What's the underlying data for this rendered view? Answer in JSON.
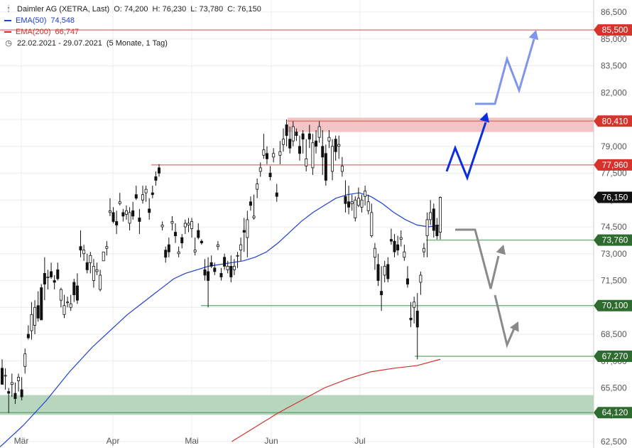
{
  "legend": {
    "header": "Daimler AG (XETRA, Last)",
    "open": "O: 74,200",
    "high": "H: 76,230",
    "low": "L: 73,780",
    "close": "C: 76,150",
    "ema50_label": "EMA(50)",
    "ema50_value": "74,548",
    "ema200_label": "EMA(200)",
    "ema200_value": "66,747",
    "date_range": "22.02.2021 - 29.07.2021",
    "period": "(5 Monate, 1 Tag)",
    "chart_icon": "candlestick-chart-icon",
    "clock_icon": "clock-icon"
  },
  "colors": {
    "ema50": "#1f3fd6",
    "ema200": "#d2302a",
    "resistance": "#e06666",
    "support": "#5aa36b",
    "zone_red": "#f2c4c4",
    "zone_green": "#b8d6bd",
    "arrow_blue": "#0a2ee0",
    "arrow_blue_light": "#7f95ee",
    "arrow_gray": "#8a8a8a",
    "badge_red": "#d8322c",
    "badge_green": "#2e6b2e",
    "badge_black": "#111111"
  },
  "chart_data": {
    "type": "candlestick",
    "instrument": "Daimler AG (XETRA, Last)",
    "period": "22.02.2021 - 29.07.2021",
    "interval": "1 Tag",
    "ylim": [
      62500,
      86500
    ],
    "y_ticks": [
      "62,500",
      "64,000",
      "65,500",
      "67,000",
      "68,500",
      "70,000",
      "71,500",
      "73,000",
      "74,500",
      "76,000",
      "77,500",
      "79,000",
      "80,500",
      "82,000",
      "83,500",
      "85,000",
      "86,500"
    ],
    "x_tick_labels": [
      "Mär",
      "Apr",
      "Mai",
      "Jun",
      "Jul"
    ],
    "last": {
      "open": 74.2,
      "high": 76.23,
      "low": 73.78,
      "close": 76.15
    },
    "price_badges": [
      {
        "label": "85,500",
        "value": 85.5,
        "kind": "resistance"
      },
      {
        "label": "80,410",
        "value": 80.41,
        "kind": "resistance"
      },
      {
        "label": "77,960",
        "value": 77.96,
        "kind": "resistance"
      },
      {
        "label": "76,150",
        "value": 76.15,
        "kind": "last"
      },
      {
        "label": "73,760",
        "value": 73.76,
        "kind": "support"
      },
      {
        "label": "70,100",
        "value": 70.1,
        "kind": "support"
      },
      {
        "label": "67,270",
        "value": 67.27,
        "kind": "support"
      },
      {
        "label": "64,120",
        "value": 64.12,
        "kind": "support"
      }
    ],
    "zones": [
      {
        "from": 79.8,
        "to": 80.6,
        "kind": "resistance"
      },
      {
        "from": 64.0,
        "to": 65.1,
        "kind": "support"
      }
    ],
    "ema50": [
      [
        0,
        62.2
      ],
      [
        5,
        62.8
      ],
      [
        10,
        63.4
      ],
      [
        15,
        64.1
      ],
      [
        20,
        64.8
      ],
      [
        25,
        65.6
      ],
      [
        30,
        66.4
      ],
      [
        35,
        67.1
      ],
      [
        40,
        67.8
      ],
      [
        45,
        68.4
      ],
      [
        50,
        69.0
      ],
      [
        55,
        69.6
      ],
      [
        60,
        70.1
      ],
      [
        65,
        70.6
      ],
      [
        70,
        71.1
      ],
      [
        75,
        71.6
      ],
      [
        80,
        71.9
      ],
      [
        85,
        72.1
      ],
      [
        90,
        72.3
      ],
      [
        95,
        72.4
      ],
      [
        100,
        72.5
      ],
      [
        105,
        72.6
      ],
      [
        110,
        72.8
      ],
      [
        115,
        73.1
      ],
      [
        120,
        73.6
      ],
      [
        125,
        74.2
      ],
      [
        130,
        74.8
      ],
      [
        135,
        75.3
      ],
      [
        140,
        75.7
      ],
      [
        145,
        76.1
      ],
      [
        150,
        76.3
      ],
      [
        155,
        76.4
      ],
      [
        160,
        76.2
      ],
      [
        165,
        75.8
      ],
      [
        170,
        75.3
      ],
      [
        175,
        74.9
      ],
      [
        180,
        74.6
      ],
      [
        185,
        74.5
      ],
      [
        190,
        74.6
      ]
    ],
    "ema200": [
      [
        100,
        62.5
      ],
      [
        110,
        63.3
      ],
      [
        120,
        64.1
      ],
      [
        130,
        64.8
      ],
      [
        140,
        65.5
      ],
      [
        150,
        66.0
      ],
      [
        160,
        66.4
      ],
      [
        170,
        66.6
      ],
      [
        180,
        66.75
      ],
      [
        190,
        67.1
      ]
    ],
    "candles": [
      [
        0,
        66.6,
        67.1,
        65.9,
        65.7
      ],
      [
        1,
        66.2,
        66.6,
        65.4,
        66.2
      ],
      [
        2,
        65.3,
        65.5,
        64.1,
        65.2
      ],
      [
        3,
        65.7,
        66.3,
        65.0,
        65.8
      ],
      [
        4,
        65.2,
        65.8,
        64.6,
        64.9
      ],
      [
        5,
        65.9,
        66.3,
        65.3,
        66.1
      ],
      [
        6,
        65.4,
        66.1,
        64.8,
        65.0
      ],
      [
        7,
        66.7,
        67.7,
        66.3,
        67.4
      ],
      [
        8,
        68.5,
        69.0,
        68.2,
        68.3
      ],
      [
        9,
        68.7,
        70.3,
        68.2,
        69.6
      ],
      [
        10,
        69.0,
        70.4,
        68.5,
        70.0
      ],
      [
        11,
        70.1,
        70.9,
        69.2,
        69.4
      ],
      [
        12,
        71.1,
        71.3,
        69.3,
        69.3
      ],
      [
        13,
        71.9,
        72.8,
        70.4,
        71.3
      ],
      [
        14,
        71.7,
        72.1,
        71.0,
        71.7
      ],
      [
        15,
        72.0,
        72.5,
        71.6,
        71.7
      ],
      [
        16,
        71.5,
        71.8,
        71.0,
        71.4
      ],
      [
        17,
        72.1,
        72.5,
        71.5,
        71.6
      ],
      [
        18,
        70.4,
        71.1,
        70.0,
        71.0
      ],
      [
        19,
        69.6,
        70.7,
        69.4,
        70.1
      ],
      [
        20,
        70.3,
        70.6,
        70.0,
        70.3
      ],
      [
        21,
        70.0,
        70.7,
        69.8,
        70.2
      ],
      [
        22,
        71.4,
        71.6,
        70.3,
        70.7
      ],
      [
        23,
        71.2,
        71.9,
        70.2,
        70.4
      ],
      [
        24,
        73.4,
        74.3,
        72.8,
        73.2
      ],
      [
        25,
        73.0,
        73.5,
        72.6,
        73.2
      ],
      [
        26,
        72.5,
        73.0,
        71.9,
        72.1
      ],
      [
        27,
        72.5,
        73.1,
        71.9,
        72.9
      ],
      [
        28,
        71.5,
        72.7,
        71.1,
        72.3
      ],
      [
        29,
        72.0,
        72.5,
        71.8,
        72.1
      ],
      [
        30,
        71.0,
        72.1,
        70.9,
        71.8
      ],
      [
        31,
        72.6,
        73.1,
        72.6,
        73.1
      ],
      [
        32,
        73.3,
        73.7,
        72.9,
        73.4
      ],
      [
        33,
        75.3,
        76.1,
        75.1,
        75.4
      ],
      [
        34,
        75.3,
        75.6,
        74.7,
        74.8
      ],
      [
        35,
        74.8,
        75.4,
        74.1,
        74.6
      ],
      [
        36,
        75.8,
        76.4,
        75.7,
        75.9
      ],
      [
        37,
        75.3,
        75.5,
        74.8,
        75.1
      ],
      [
        38,
        75.2,
        75.7,
        74.9,
        75.4
      ],
      [
        39,
        74.7,
        75.6,
        74.3,
        75.3
      ],
      [
        40,
        75.4,
        75.9,
        74.9,
        75.1
      ],
      [
        41,
        76.3,
        76.8,
        76.0,
        76.1
      ],
      [
        42,
        75.0,
        75.5,
        74.1,
        74.8
      ],
      [
        43,
        76.0,
        76.8,
        75.8,
        76.3
      ],
      [
        44,
        76.4,
        76.8,
        75.9,
        76.6
      ],
      [
        45,
        75.5,
        76.1,
        74.9,
        75.3
      ],
      [
        46,
        76.4,
        76.8,
        76.1,
        76.3
      ],
      [
        47,
        77.3,
        77.6,
        76.8,
        77.1
      ],
      [
        48,
        77.8,
        78.0,
        77.3,
        77.5
      ],
      [
        49,
        74.5,
        74.8,
        74.3,
        74.6
      ],
      [
        50,
        73.2,
        73.4,
        72.5,
        72.8
      ],
      [
        51,
        73.5,
        73.9,
        72.8,
        73.1
      ],
      [
        52,
        74.7,
        75.1,
        74.3,
        74.8
      ],
      [
        53,
        74.2,
        74.7,
        73.6,
        74.0
      ],
      [
        54,
        73.0,
        73.4,
        72.8,
        73.1
      ],
      [
        55,
        73.9,
        74.1,
        73.3,
        73.6
      ],
      [
        56,
        74.5,
        74.9,
        74.1,
        74.7
      ],
      [
        57,
        74.6,
        75.0,
        74.2,
        74.7
      ],
      [
        58,
        74.4,
        75.0,
        73.9,
        74.8
      ],
      [
        59,
        73.1,
        73.9,
        72.9,
        73.2
      ],
      [
        60,
        74.3,
        74.7,
        73.8,
        73.9
      ],
      [
        61,
        73.7,
        73.8,
        73.5,
        73.6
      ],
      [
        62,
        72.1,
        72.7,
        71.5,
        71.8
      ],
      [
        63,
        72.0,
        72.8,
        70.0,
        71.5
      ],
      [
        64,
        72.5,
        72.9,
        72.2,
        72.3
      ],
      [
        65,
        72.2,
        72.5,
        71.8,
        72.0
      ],
      [
        66,
        73.4,
        73.7,
        73.2,
        73.5
      ],
      [
        67,
        71.9,
        72.2,
        71.5,
        71.7
      ],
      [
        68,
        72.8,
        73.0,
        72.1,
        72.3
      ],
      [
        69,
        72.1,
        72.6,
        71.9,
        72.3
      ],
      [
        70,
        72.3,
        72.9,
        71.4,
        71.7
      ],
      [
        71,
        72.1,
        72.7,
        71.8,
        72.3
      ],
      [
        72,
        72.9,
        73.1,
        72.2,
        72.9
      ],
      [
        73,
        73.2,
        73.9,
        72.6,
        73.5
      ],
      [
        74,
        74.3,
        75.0,
        73.1,
        74.2
      ],
      [
        75,
        73.9,
        75.4,
        72.8,
        74.9
      ],
      [
        76,
        75.9,
        76.2,
        75.4,
        75.7
      ],
      [
        77,
        75.0,
        76.3,
        74.9,
        75.1
      ],
      [
        78,
        76.6,
        77.2,
        76.1,
        76.9
      ],
      [
        79,
        77.6,
        78.1,
        77.3,
        77.8
      ],
      [
        80,
        78.5,
        79.7,
        78.3,
        78.8
      ],
      [
        81,
        78.6,
        79.0,
        78.0,
        78.3
      ],
      [
        82,
        77.5,
        77.9,
        77.1,
        77.3
      ],
      [
        83,
        78.4,
        78.9,
        78.1,
        78.6
      ],
      [
        84,
        76.4,
        76.9,
        75.9,
        76.2
      ],
      [
        85,
        78.5,
        79.3,
        78.0,
        78.7
      ],
      [
        86,
        79.1,
        80.0,
        78.7,
        79.4
      ],
      [
        87,
        80.2,
        80.5,
        79.0,
        79.6
      ],
      [
        88,
        79.4,
        80.1,
        78.6,
        78.9
      ],
      [
        89,
        79.3,
        80.4,
        79.0,
        80.1
      ],
      [
        90,
        79.8,
        80.0,
        79.3,
        79.6
      ],
      [
        91,
        79.0,
        79.6,
        78.2,
        78.6
      ],
      [
        92,
        79.7,
        79.9,
        78.6,
        79.4
      ],
      [
        93,
        77.9,
        79.4,
        77.6,
        78.3
      ],
      [
        94,
        79.7,
        80.2,
        78.9,
        79.4
      ],
      [
        95,
        77.8,
        79.7,
        77.4,
        79.2
      ],
      [
        96,
        79.3,
        79.9,
        78.6,
        79.0
      ],
      [
        97,
        79.5,
        80.4,
        79.2,
        80.1
      ],
      [
        98,
        79.0,
        79.9,
        77.4,
        78.4
      ],
      [
        99,
        78.6,
        79.1,
        76.8,
        77.1
      ],
      [
        100,
        79.3,
        79.9,
        78.9,
        79.5
      ],
      [
        101,
        77.6,
        79.4,
        77.1,
        79.0
      ],
      [
        102,
        79.4,
        79.6,
        78.2,
        78.7
      ],
      [
        103,
        79.0,
        79.6,
        78.3,
        79.1
      ],
      [
        104,
        77.6,
        78.4,
        77.3,
        77.9
      ],
      [
        105,
        76.2,
        77.1,
        75.3,
        75.8
      ],
      [
        106,
        75.9,
        76.8,
        75.2,
        75.6
      ],
      [
        107,
        75.8,
        76.3,
        75.4,
        75.9
      ],
      [
        108,
        75.0,
        76.2,
        74.8,
        76.0
      ],
      [
        109,
        75.7,
        76.7,
        75.6,
        76.1
      ],
      [
        110,
        75.6,
        76.3,
        75.3,
        76.0
      ],
      [
        111,
        76.2,
        76.8,
        75.7,
        76.5
      ],
      [
        112,
        75.4,
        76.3,
        75.2,
        75.9
      ],
      [
        113,
        74.0,
        75.8,
        73.9,
        75.3
      ],
      [
        114,
        72.8,
        73.6,
        72.1,
        73.3
      ],
      [
        115,
        72.4,
        73.0,
        71.2,
        71.5
      ],
      [
        116,
        70.9,
        72.3,
        69.8,
        70.7
      ],
      [
        117,
        71.8,
        72.6,
        71.4,
        72.3
      ],
      [
        118,
        72.4,
        72.8,
        71.4,
        71.6
      ],
      [
        119,
        73.8,
        74.4,
        73.5,
        73.7
      ],
      [
        120,
        73.7,
        74.1,
        72.8,
        73.1
      ],
      [
        121,
        73.5,
        74.0,
        72.9,
        73.2
      ],
      [
        122,
        73.8,
        74.3,
        73.4,
        73.9
      ],
      [
        123,
        72.8,
        73.5,
        72.6,
        73.1
      ],
      [
        124,
        71.6,
        72.3,
        71.1,
        71.3
      ],
      [
        125,
        69.4,
        70.3,
        68.9,
        69.3
      ],
      [
        126,
        70.0,
        70.6,
        69.1,
        70.3
      ],
      [
        127,
        69.8,
        70.8,
        67.1,
        68.9
      ],
      [
        128,
        71.4,
        72.0,
        70.7,
        71.8
      ],
      [
        129,
        73.1,
        73.6,
        72.8,
        73.3
      ],
      [
        130,
        74.0,
        75.3,
        72.8,
        74.9
      ],
      [
        131,
        74.9,
        76.0,
        74.6,
        75.3
      ],
      [
        132,
        75.5,
        75.8,
        73.9,
        74.3
      ],
      [
        133,
        74.6,
        75.0,
        73.8,
        74.0
      ],
      [
        134,
        74.2,
        76.2,
        73.8,
        76.15
      ]
    ]
  },
  "arrows": [
    {
      "kind": "bullish_primary",
      "color_key": "arrow_blue"
    },
    {
      "kind": "bullish_extension",
      "color_key": "arrow_blue_light"
    },
    {
      "kind": "bearish_scenario_1",
      "color_key": "arrow_gray"
    },
    {
      "kind": "bearish_scenario_2",
      "color_key": "arrow_gray"
    }
  ]
}
